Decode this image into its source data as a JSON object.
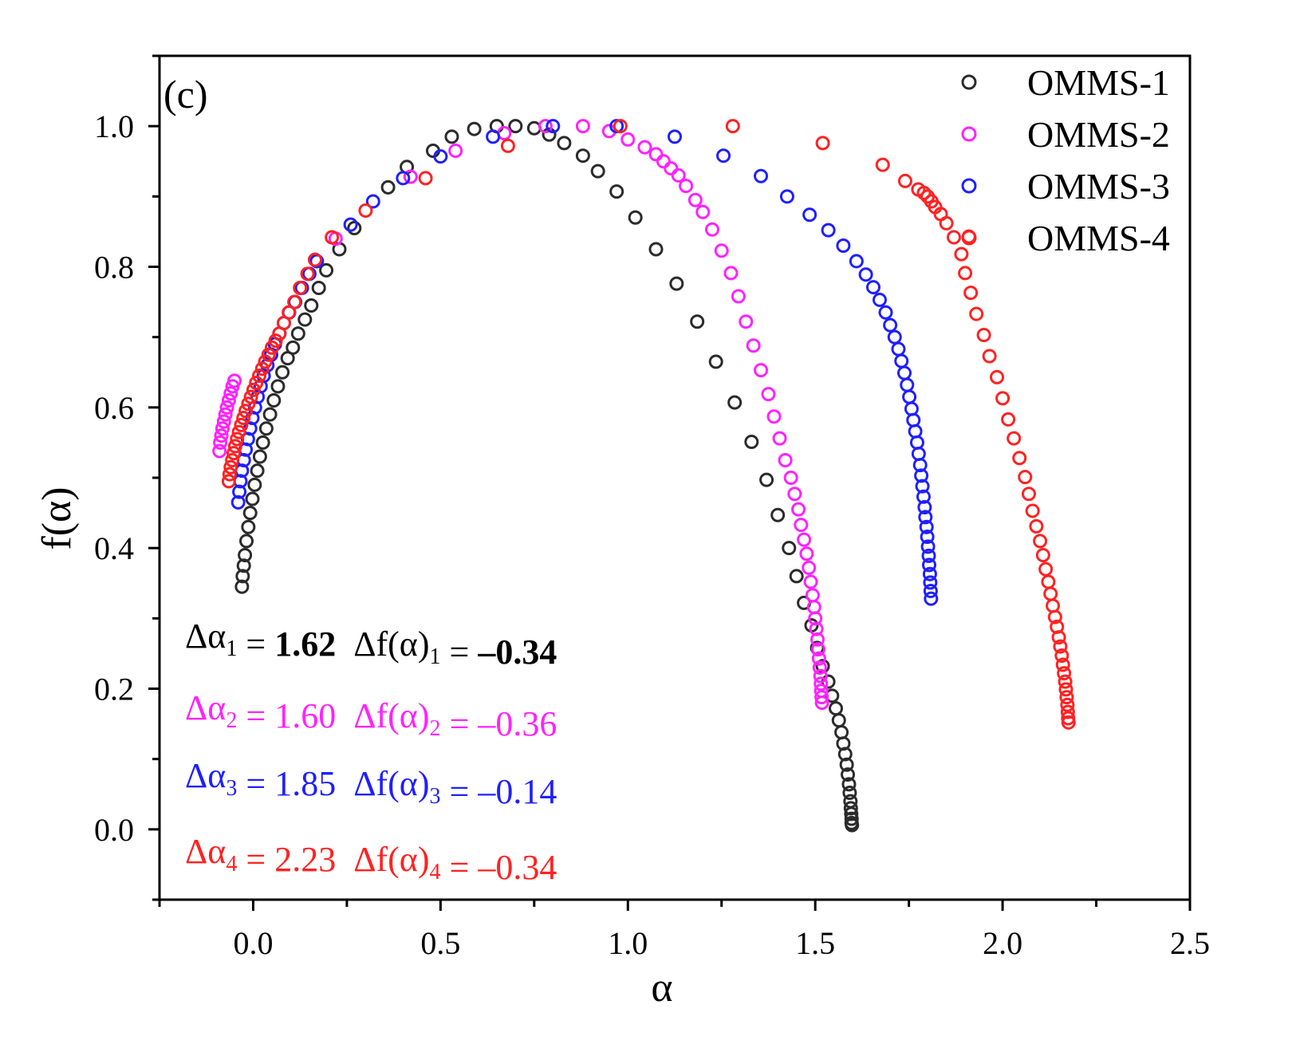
{
  "chart_data": {
    "type": "scatter",
    "panel_label": "(c)",
    "xlabel": "α",
    "ylabel": "f(α)",
    "xlim": [
      -0.25,
      2.5
    ],
    "ylim": [
      -0.1,
      1.1
    ],
    "x_ticks": [
      "0.0",
      "0.5",
      "1.0",
      "1.5",
      "2.0",
      "2.5"
    ],
    "x_tick_values": [
      0.0,
      0.5,
      1.0,
      1.5,
      2.0,
      2.5
    ],
    "y_ticks": [
      "0.0",
      "0.2",
      "0.4",
      "0.6",
      "0.8",
      "1.0"
    ],
    "y_tick_values": [
      0.0,
      0.2,
      0.4,
      0.6,
      0.8,
      1.0
    ],
    "marker": "open-circle",
    "legend_position": "top-right",
    "series": [
      {
        "name": "OMMS-1",
        "color": "#2b2b2b",
        "points": [
          [
            -0.03,
            0.345
          ],
          [
            -0.028,
            0.36
          ],
          [
            -0.025,
            0.375
          ],
          [
            -0.022,
            0.39
          ],
          [
            -0.018,
            0.41
          ],
          [
            -0.013,
            0.43
          ],
          [
            -0.008,
            0.45
          ],
          [
            -0.002,
            0.47
          ],
          [
            0.004,
            0.49
          ],
          [
            0.011,
            0.51
          ],
          [
            0.018,
            0.53
          ],
          [
            0.026,
            0.55
          ],
          [
            0.035,
            0.57
          ],
          [
            0.045,
            0.59
          ],
          [
            0.055,
            0.61
          ],
          [
            0.066,
            0.63
          ],
          [
            0.078,
            0.65
          ],
          [
            0.092,
            0.67
          ],
          [
            0.106,
            0.685
          ],
          [
            0.12,
            0.705
          ],
          [
            0.138,
            0.725
          ],
          [
            0.155,
            0.745
          ],
          [
            0.175,
            0.77
          ],
          [
            0.195,
            0.795
          ],
          [
            0.23,
            0.825
          ],
          [
            0.27,
            0.855
          ],
          [
            0.36,
            0.913
          ],
          [
            0.41,
            0.942
          ],
          [
            0.48,
            0.965
          ],
          [
            0.53,
            0.985
          ],
          [
            0.59,
            0.996
          ],
          [
            0.65,
            1.0
          ],
          [
            0.7,
            1.0
          ],
          [
            0.75,
            0.997
          ],
          [
            0.79,
            0.988
          ],
          [
            0.83,
            0.976
          ],
          [
            0.88,
            0.958
          ],
          [
            0.92,
            0.936
          ],
          [
            0.97,
            0.907
          ],
          [
            1.02,
            0.87
          ],
          [
            1.075,
            0.825
          ],
          [
            1.13,
            0.776
          ],
          [
            1.185,
            0.722
          ],
          [
            1.235,
            0.665
          ],
          [
            1.285,
            0.607
          ],
          [
            1.33,
            0.551
          ],
          [
            1.37,
            0.497
          ],
          [
            1.4,
            0.447
          ],
          [
            1.43,
            0.4
          ],
          [
            1.45,
            0.36
          ],
          [
            1.47,
            0.322
          ],
          [
            1.49,
            0.29
          ],
          [
            1.505,
            0.258
          ],
          [
            1.52,
            0.232
          ],
          [
            1.535,
            0.21
          ],
          [
            1.545,
            0.19
          ],
          [
            1.555,
            0.172
          ],
          [
            1.563,
            0.155
          ],
          [
            1.57,
            0.138
          ],
          [
            1.575,
            0.122
          ],
          [
            1.58,
            0.107
          ],
          [
            1.584,
            0.092
          ],
          [
            1.587,
            0.078
          ],
          [
            1.59,
            0.064
          ],
          [
            1.592,
            0.052
          ],
          [
            1.594,
            0.04
          ],
          [
            1.595,
            0.03
          ],
          [
            1.596,
            0.022
          ],
          [
            1.597,
            0.015
          ],
          [
            1.597,
            0.009
          ],
          [
            1.598,
            0.006
          ]
        ]
      },
      {
        "name": "OMMS-2",
        "color": "#ff22ff",
        "points": [
          [
            -0.09,
            0.538
          ],
          [
            -0.088,
            0.55
          ],
          [
            -0.085,
            0.56
          ],
          [
            -0.082,
            0.57
          ],
          [
            -0.078,
            0.58
          ],
          [
            -0.074,
            0.59
          ],
          [
            -0.07,
            0.6
          ],
          [
            -0.065,
            0.61
          ],
          [
            -0.06,
            0.62
          ],
          [
            -0.055,
            0.63
          ],
          [
            -0.05,
            0.638
          ],
          [
            0.22,
            0.84
          ],
          [
            0.42,
            0.928
          ],
          [
            0.54,
            0.965
          ],
          [
            0.67,
            0.99
          ],
          [
            0.78,
            1.0
          ],
          [
            0.88,
            1.0
          ],
          [
            0.95,
            0.993
          ],
          [
            1.0,
            0.981
          ],
          [
            1.045,
            0.97
          ],
          [
            1.075,
            0.96
          ],
          [
            1.095,
            0.95
          ],
          [
            1.115,
            0.94
          ],
          [
            1.135,
            0.93
          ],
          [
            1.155,
            0.915
          ],
          [
            1.18,
            0.895
          ],
          [
            1.2,
            0.878
          ],
          [
            1.225,
            0.853
          ],
          [
            1.25,
            0.823
          ],
          [
            1.275,
            0.791
          ],
          [
            1.295,
            0.758
          ],
          [
            1.315,
            0.722
          ],
          [
            1.335,
            0.688
          ],
          [
            1.355,
            0.653
          ],
          [
            1.375,
            0.619
          ],
          [
            1.39,
            0.587
          ],
          [
            1.405,
            0.556
          ],
          [
            1.42,
            0.525
          ],
          [
            1.435,
            0.5
          ],
          [
            1.445,
            0.477
          ],
          [
            1.455,
            0.455
          ],
          [
            1.462,
            0.433
          ],
          [
            1.47,
            0.412
          ],
          [
            1.477,
            0.392
          ],
          [
            1.483,
            0.372
          ],
          [
            1.488,
            0.352
          ],
          [
            1.493,
            0.333
          ],
          [
            1.497,
            0.316
          ],
          [
            1.5,
            0.3
          ],
          [
            1.503,
            0.285
          ],
          [
            1.506,
            0.27
          ],
          [
            1.508,
            0.256
          ],
          [
            1.51,
            0.243
          ],
          [
            1.512,
            0.23
          ],
          [
            1.514,
            0.218
          ],
          [
            1.515,
            0.207
          ],
          [
            1.516,
            0.197
          ],
          [
            1.517,
            0.188
          ],
          [
            1.518,
            0.18
          ]
        ]
      },
      {
        "name": "OMMS-3",
        "color": "#1f1fff",
        "points": [
          [
            -0.04,
            0.465
          ],
          [
            -0.037,
            0.48
          ],
          [
            -0.034,
            0.495
          ],
          [
            -0.03,
            0.51
          ],
          [
            -0.025,
            0.525
          ],
          [
            -0.02,
            0.54
          ],
          [
            -0.014,
            0.555
          ],
          [
            -0.008,
            0.57
          ],
          [
            -0.002,
            0.585
          ],
          [
            0.005,
            0.6
          ],
          [
            0.012,
            0.615
          ],
          [
            0.02,
            0.63
          ],
          [
            0.028,
            0.645
          ],
          [
            0.038,
            0.66
          ],
          [
            0.048,
            0.675
          ],
          [
            0.058,
            0.69
          ],
          [
            0.07,
            0.705
          ],
          [
            0.082,
            0.72
          ],
          [
            0.096,
            0.735
          ],
          [
            0.112,
            0.75
          ],
          [
            0.13,
            0.77
          ],
          [
            0.15,
            0.79
          ],
          [
            0.17,
            0.808
          ],
          [
            0.26,
            0.86
          ],
          [
            0.32,
            0.893
          ],
          [
            0.4,
            0.926
          ],
          [
            0.5,
            0.957
          ],
          [
            0.64,
            0.985
          ],
          [
            0.8,
            1.0
          ],
          [
            0.97,
            1.0
          ],
          [
            1.125,
            0.985
          ],
          [
            1.255,
            0.958
          ],
          [
            1.355,
            0.929
          ],
          [
            1.425,
            0.9
          ],
          [
            1.485,
            0.874
          ],
          [
            1.535,
            0.852
          ],
          [
            1.575,
            0.83
          ],
          [
            1.61,
            0.808
          ],
          [
            1.635,
            0.789
          ],
          [
            1.655,
            0.771
          ],
          [
            1.672,
            0.753
          ],
          [
            1.688,
            0.735
          ],
          [
            1.7,
            0.717
          ],
          [
            1.712,
            0.7
          ],
          [
            1.722,
            0.683
          ],
          [
            1.73,
            0.666
          ],
          [
            1.738,
            0.649
          ],
          [
            1.745,
            0.632
          ],
          [
            1.751,
            0.615
          ],
          [
            1.757,
            0.598
          ],
          [
            1.762,
            0.582
          ],
          [
            1.767,
            0.566
          ],
          [
            1.772,
            0.55
          ],
          [
            1.776,
            0.534
          ],
          [
            1.78,
            0.518
          ],
          [
            1.783,
            0.503
          ],
          [
            1.786,
            0.488
          ],
          [
            1.789,
            0.473
          ],
          [
            1.792,
            0.458
          ],
          [
            1.794,
            0.444
          ],
          [
            1.797,
            0.43
          ],
          [
            1.799,
            0.416
          ],
          [
            1.801,
            0.402
          ],
          [
            1.803,
            0.389
          ],
          [
            1.804,
            0.376
          ],
          [
            1.806,
            0.363
          ],
          [
            1.807,
            0.351
          ],
          [
            1.808,
            0.339
          ],
          [
            1.809,
            0.328
          ]
        ]
      },
      {
        "name": "OMMS-4",
        "color": "#ff2222",
        "points": [
          [
            -0.065,
            0.495
          ],
          [
            -0.063,
            0.505
          ],
          [
            -0.06,
            0.515
          ],
          [
            -0.056,
            0.525
          ],
          [
            -0.052,
            0.535
          ],
          [
            -0.048,
            0.545
          ],
          [
            -0.043,
            0.555
          ],
          [
            -0.038,
            0.565
          ],
          [
            -0.032,
            0.575
          ],
          [
            -0.026,
            0.585
          ],
          [
            -0.02,
            0.595
          ],
          [
            -0.013,
            0.605
          ],
          [
            -0.006,
            0.615
          ],
          [
            0.001,
            0.625
          ],
          [
            0.008,
            0.635
          ],
          [
            0.016,
            0.645
          ],
          [
            0.024,
            0.655
          ],
          [
            0.032,
            0.665
          ],
          [
            0.041,
            0.675
          ],
          [
            0.05,
            0.685
          ],
          [
            0.06,
            0.695
          ],
          [
            0.07,
            0.705
          ],
          [
            0.082,
            0.72
          ],
          [
            0.095,
            0.735
          ],
          [
            0.11,
            0.75
          ],
          [
            0.125,
            0.77
          ],
          [
            0.145,
            0.79
          ],
          [
            0.165,
            0.81
          ],
          [
            0.21,
            0.842
          ],
          [
            0.3,
            0.88
          ],
          [
            0.46,
            0.926
          ],
          [
            0.68,
            0.972
          ],
          [
            0.98,
            1.0
          ],
          [
            1.28,
            1.0
          ],
          [
            1.52,
            0.976
          ],
          [
            1.68,
            0.945
          ],
          [
            1.74,
            0.922
          ],
          [
            1.775,
            0.91
          ],
          [
            1.79,
            0.905
          ],
          [
            1.8,
            0.9
          ],
          [
            1.81,
            0.893
          ],
          [
            1.82,
            0.885
          ],
          [
            1.835,
            0.875
          ],
          [
            1.85,
            0.862
          ],
          [
            1.87,
            0.842
          ],
          [
            1.89,
            0.818
          ],
          [
            1.9,
            0.791
          ],
          [
            1.915,
            0.763
          ],
          [
            1.93,
            0.733
          ],
          [
            1.95,
            0.703
          ],
          [
            1.965,
            0.673
          ],
          [
            1.985,
            0.643
          ],
          [
            2.0,
            0.613
          ],
          [
            2.015,
            0.583
          ],
          [
            2.03,
            0.556
          ],
          [
            2.045,
            0.528
          ],
          [
            2.06,
            0.501
          ],
          [
            2.07,
            0.477
          ],
          [
            2.08,
            0.453
          ],
          [
            2.09,
            0.431
          ],
          [
            2.1,
            0.41
          ],
          [
            2.108,
            0.39
          ],
          [
            2.115,
            0.37
          ],
          [
            2.122,
            0.352
          ],
          [
            2.128,
            0.335
          ],
          [
            2.134,
            0.318
          ],
          [
            2.14,
            0.302
          ],
          [
            2.145,
            0.288
          ],
          [
            2.15,
            0.273
          ],
          [
            2.154,
            0.26
          ],
          [
            2.158,
            0.247
          ],
          [
            2.161,
            0.234
          ],
          [
            2.164,
            0.222
          ],
          [
            2.167,
            0.21
          ],
          [
            2.169,
            0.199
          ],
          [
            2.171,
            0.188
          ],
          [
            2.173,
            0.177
          ],
          [
            2.174,
            0.167
          ],
          [
            2.175,
            0.158
          ],
          [
            2.176,
            0.152
          ],
          [
            1.91,
            0.843
          ]
        ]
      }
    ],
    "annotations": [
      {
        "color": "#000000",
        "bold_values": true,
        "text": {
          "da": "Δα",
          "sub": "1",
          "eq": " = ",
          "value": "1.62",
          "df": "Δf(α)",
          "sub2": "1",
          "eq2": " = ",
          "value2": "–0.34"
        }
      },
      {
        "color": "#ff22ff",
        "bold_values": false,
        "text": {
          "da": "Δα",
          "sub": "2",
          "eq": " = ",
          "value": "1.60",
          "df": "Δf(α)",
          "sub2": "2",
          "eq2": " = ",
          "value2": "–0.36"
        }
      },
      {
        "color": "#1f1fff",
        "bold_values": false,
        "text": {
          "da": "Δα",
          "sub": "3",
          "eq": " = ",
          "value": "1.85",
          "df": "Δf(α)",
          "sub2": "3",
          "eq2": " = ",
          "value2": "–0.14"
        }
      },
      {
        "color": "#ff2222",
        "bold_values": false,
        "text": {
          "da": "Δα",
          "sub": "4",
          "eq": " = ",
          "value": "2.23",
          "df": "Δf(α)",
          "sub2": "4",
          "eq2": " = ",
          "value2": "–0.34"
        }
      }
    ]
  }
}
